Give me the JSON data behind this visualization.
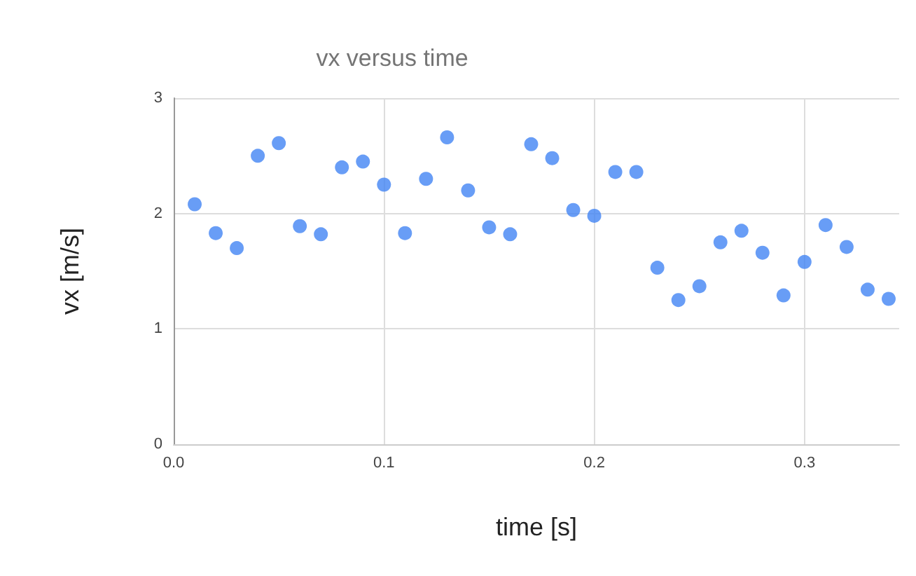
{
  "chart_data": {
    "type": "scatter",
    "title": "vx versus time",
    "xlabel": "time [s]",
    "ylabel": "vx [m/s]",
    "x": [
      0.01,
      0.02,
      0.03,
      0.04,
      0.05,
      0.06,
      0.07,
      0.08,
      0.09,
      0.1,
      0.11,
      0.12,
      0.13,
      0.14,
      0.15,
      0.16,
      0.17,
      0.18,
      0.19,
      0.2,
      0.21,
      0.22,
      0.23,
      0.24,
      0.25,
      0.26,
      0.27,
      0.28,
      0.29,
      0.3,
      0.31,
      0.32,
      0.33,
      0.34
    ],
    "series": [
      {
        "color": "#4285f4",
        "values": [
          2.08,
          1.83,
          1.7,
          2.5,
          2.61,
          1.89,
          1.82,
          2.4,
          2.45,
          2.25,
          1.83,
          2.3,
          2.66,
          2.2,
          1.88,
          1.82,
          2.6,
          2.48,
          2.03,
          1.98,
          2.36,
          2.36,
          1.53,
          1.25,
          1.37,
          1.75,
          1.85,
          1.66,
          1.29,
          1.58,
          1.9,
          1.71,
          1.34,
          1.26
        ]
      }
    ],
    "xlim": [
      0,
      0.345
    ],
    "xticks": [
      {
        "value": 0,
        "label": "0.0"
      },
      0.1,
      0.2,
      0.3
    ],
    "ylim": [
      0,
      3
    ],
    "yticks": [
      0,
      1,
      2,
      3
    ],
    "grid": true,
    "marker": "circle"
  }
}
